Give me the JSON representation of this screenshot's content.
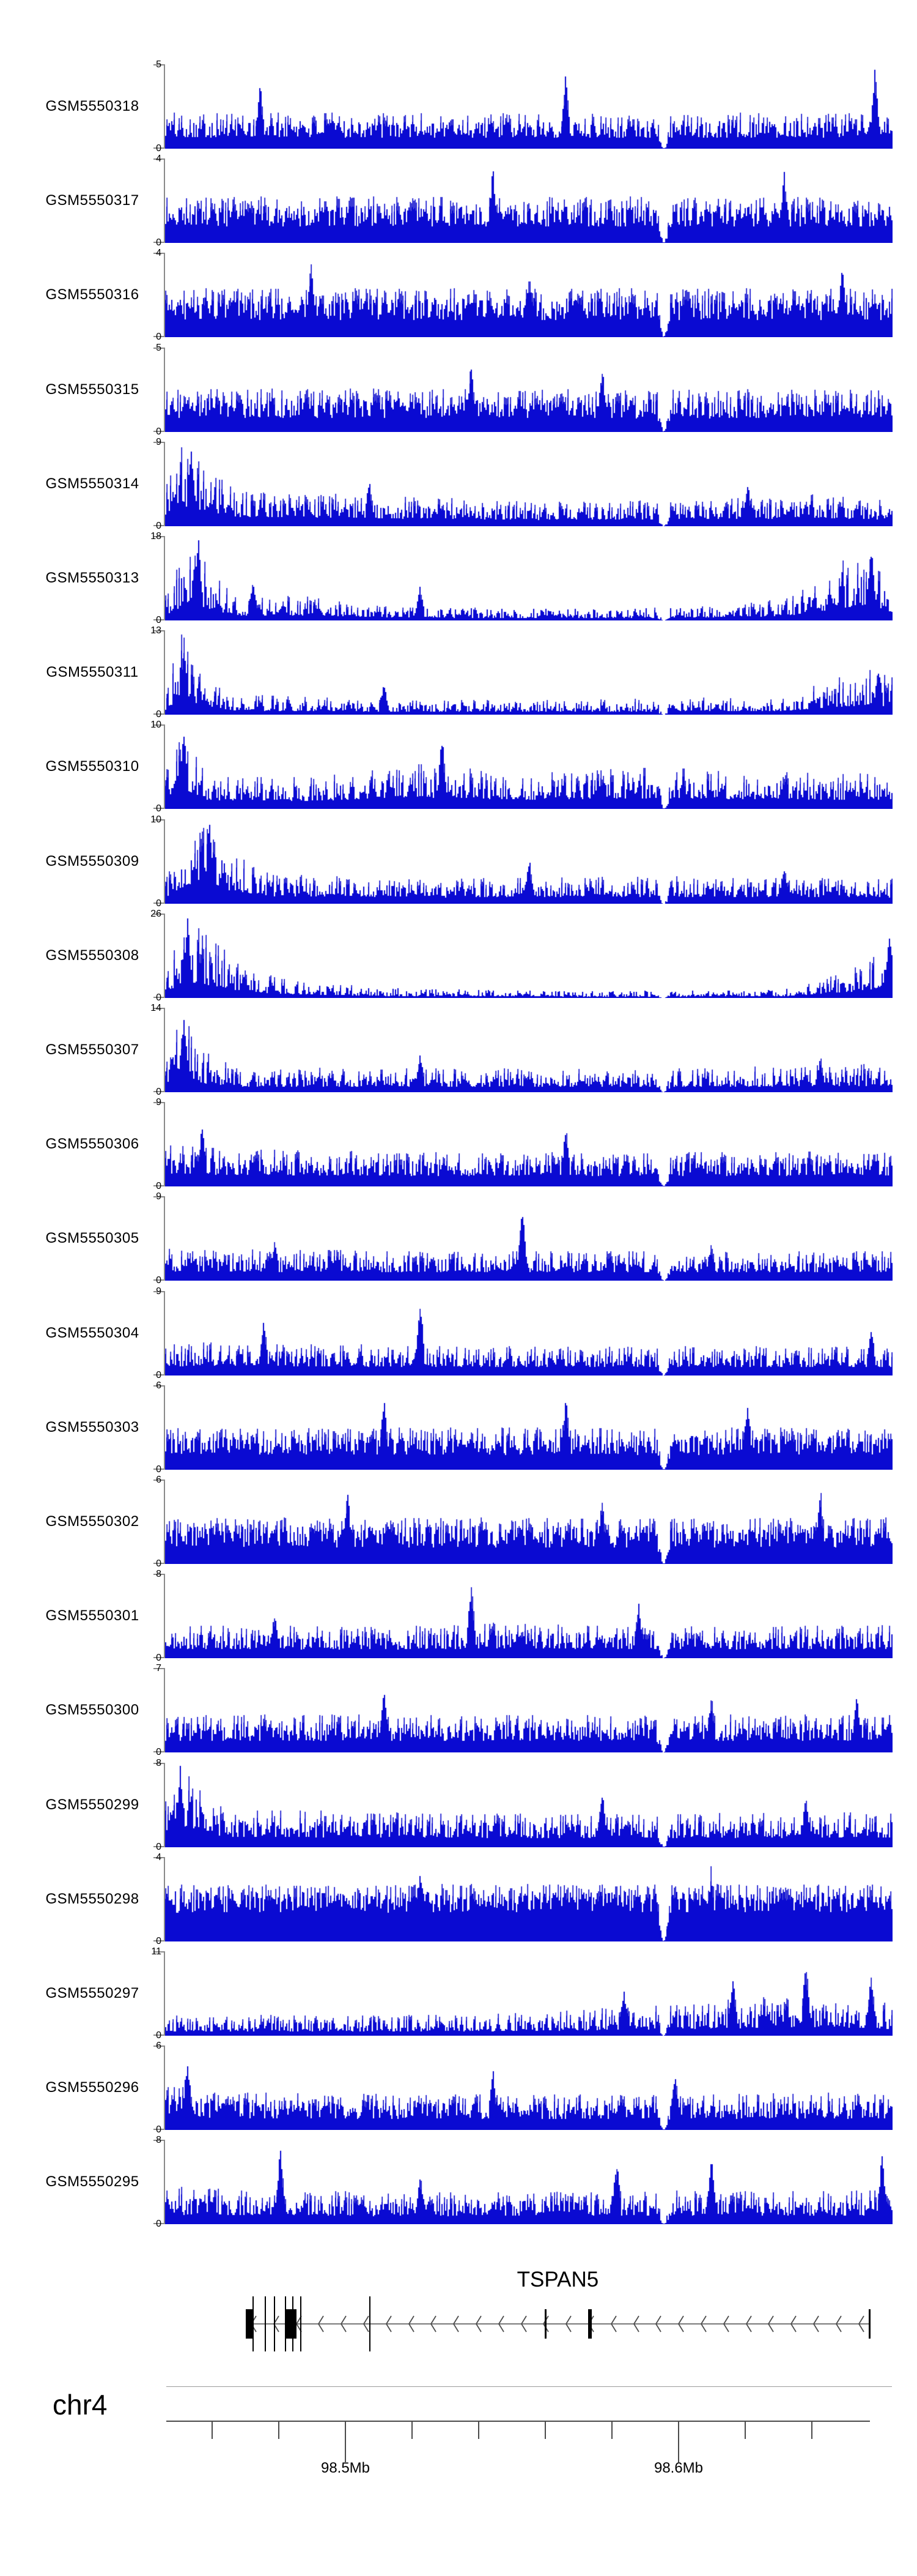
{
  "chart_data": {
    "type": "area",
    "description": "Genome browser read-coverage (pileup) tracks for 23 GEO samples over the TSPAN5 locus on chr4, with gene model and genomic coordinate axis",
    "colors": {
      "coverage_fill": "#0a0ad2",
      "coverage_highlight": "#6b6bdc",
      "track_axis_gray": "#8a8a8a",
      "gene_line_gray": "#7a7a7a",
      "exon_black": "#000000",
      "axis_dark": "#4a4a4a",
      "text": "#000000",
      "background": "#ffffff"
    },
    "y_zero_label": "0",
    "tracks": [
      {
        "sample": "GSM5550318",
        "ymax": 5,
        "seed": 101,
        "floor": 0.3,
        "pw": 1.3,
        "env": [
          [
            0,
            0.44
          ],
          [
            0.5,
            0.42
          ],
          [
            1,
            0.44
          ]
        ],
        "specials": [
          [
            0.13,
            0.8
          ],
          [
            0.55,
            0.95
          ],
          [
            0.975,
            1.0
          ]
        ]
      },
      {
        "sample": "GSM5550317",
        "ymax": 4,
        "seed": 202,
        "floor": 0.35,
        "pw": 1.2,
        "env": [
          [
            0,
            0.55
          ],
          [
            1,
            0.55
          ]
        ],
        "specials": [
          [
            0.45,
            0.95
          ],
          [
            0.85,
            0.9
          ]
        ]
      },
      {
        "sample": "GSM5550316",
        "ymax": 4,
        "seed": 303,
        "floor": 0.35,
        "pw": 1.1,
        "env": [
          [
            0,
            0.58
          ],
          [
            1,
            0.58
          ]
        ],
        "specials": [
          [
            0.2,
            0.95
          ],
          [
            0.5,
            0.9
          ],
          [
            0.93,
            0.95
          ]
        ]
      },
      {
        "sample": "GSM5550315",
        "ymax": 5,
        "seed": 404,
        "floor": 0.32,
        "pw": 1.2,
        "env": [
          [
            0,
            0.52
          ],
          [
            1,
            0.5
          ]
        ],
        "specials": [
          [
            0.42,
            0.9
          ],
          [
            0.6,
            0.85
          ]
        ]
      },
      {
        "sample": "GSM5550314",
        "ymax": 9,
        "seed": 505,
        "floor": 0.25,
        "pw": 1.6,
        "env": [
          [
            0,
            0.55
          ],
          [
            0.02,
            1
          ],
          [
            0.05,
            0.75
          ],
          [
            0.1,
            0.42
          ],
          [
            0.25,
            0.38
          ],
          [
            0.5,
            0.3
          ],
          [
            0.75,
            0.32
          ],
          [
            0.9,
            0.38
          ],
          [
            1,
            0.3
          ]
        ],
        "specials": [
          [
            0.035,
            1
          ],
          [
            0.28,
            0.6
          ],
          [
            0.8,
            0.55
          ]
        ]
      },
      {
        "sample": "GSM5550313",
        "ymax": 18,
        "seed": 606,
        "floor": 0.2,
        "pw": 2.0,
        "env": [
          [
            0,
            0.3
          ],
          [
            0.03,
            1
          ],
          [
            0.07,
            0.55
          ],
          [
            0.1,
            0.28
          ],
          [
            0.18,
            0.3
          ],
          [
            0.3,
            0.18
          ],
          [
            0.5,
            0.14
          ],
          [
            0.7,
            0.16
          ],
          [
            0.85,
            0.25
          ],
          [
            0.96,
            0.9
          ],
          [
            1,
            0.5
          ]
        ],
        "specials": [
          [
            0.045,
            1
          ],
          [
            0.12,
            0.5
          ],
          [
            0.35,
            0.45
          ],
          [
            0.97,
            0.95
          ]
        ]
      },
      {
        "sample": "GSM5550311",
        "ymax": 13,
        "seed": 707,
        "floor": 0.2,
        "pw": 2.0,
        "env": [
          [
            0,
            0.25
          ],
          [
            0.02,
            1
          ],
          [
            0.05,
            0.5
          ],
          [
            0.09,
            0.25
          ],
          [
            0.3,
            0.18
          ],
          [
            0.6,
            0.18
          ],
          [
            0.85,
            0.22
          ],
          [
            0.97,
            0.6
          ],
          [
            1,
            0.45
          ]
        ],
        "specials": [
          [
            0.025,
            1
          ],
          [
            0.3,
            0.4
          ],
          [
            0.98,
            0.6
          ]
        ]
      },
      {
        "sample": "GSM5550310",
        "ymax": 10,
        "seed": 808,
        "floor": 0.25,
        "pw": 1.7,
        "env": [
          [
            0,
            0.5
          ],
          [
            0.02,
            1
          ],
          [
            0.06,
            0.4
          ],
          [
            0.2,
            0.38
          ],
          [
            0.35,
            0.55
          ],
          [
            0.5,
            0.42
          ],
          [
            0.65,
            0.5
          ],
          [
            0.8,
            0.45
          ],
          [
            1,
            0.42
          ]
        ],
        "specials": [
          [
            0.025,
            1
          ],
          [
            0.38,
            0.9
          ],
          [
            0.68,
            0.7
          ]
        ]
      },
      {
        "sample": "GSM5550309",
        "ymax": 10,
        "seed": 909,
        "floor": 0.25,
        "pw": 1.7,
        "env": [
          [
            0,
            0.3
          ],
          [
            0.03,
            0.85
          ],
          [
            0.06,
            1
          ],
          [
            0.09,
            0.6
          ],
          [
            0.15,
            0.35
          ],
          [
            0.4,
            0.3
          ],
          [
            0.7,
            0.33
          ],
          [
            1,
            0.3
          ]
        ],
        "specials": [
          [
            0.06,
            1
          ],
          [
            0.5,
            0.55
          ],
          [
            0.85,
            0.5
          ]
        ]
      },
      {
        "sample": "GSM5550308",
        "ymax": 26,
        "seed": 1010,
        "floor": 0.2,
        "pw": 2.2,
        "env": [
          [
            0,
            0.3
          ],
          [
            0.025,
            1
          ],
          [
            0.05,
            0.85
          ],
          [
            0.09,
            0.5
          ],
          [
            0.15,
            0.25
          ],
          [
            0.3,
            0.12
          ],
          [
            0.6,
            0.08
          ],
          [
            0.85,
            0.1
          ],
          [
            0.96,
            0.4
          ],
          [
            1,
            0.85
          ]
        ],
        "specials": [
          [
            0.03,
            1
          ],
          [
            0.995,
            0.85
          ]
        ]
      },
      {
        "sample": "GSM5550307",
        "ymax": 14,
        "seed": 1111,
        "floor": 0.22,
        "pw": 1.9,
        "env": [
          [
            0,
            0.35
          ],
          [
            0.02,
            1
          ],
          [
            0.05,
            0.5
          ],
          [
            0.1,
            0.28
          ],
          [
            0.3,
            0.3
          ],
          [
            0.55,
            0.28
          ],
          [
            0.8,
            0.3
          ],
          [
            1,
            0.35
          ]
        ],
        "specials": [
          [
            0.025,
            1
          ],
          [
            0.35,
            0.5
          ],
          [
            0.9,
            0.45
          ]
        ]
      },
      {
        "sample": "GSM5550306",
        "ymax": 9,
        "seed": 1212,
        "floor": 0.3,
        "pw": 1.4,
        "env": [
          [
            0,
            0.5
          ],
          [
            0.1,
            0.45
          ],
          [
            0.3,
            0.42
          ],
          [
            0.6,
            0.4
          ],
          [
            1,
            0.42
          ]
        ],
        "specials": [
          [
            0.05,
            0.8
          ],
          [
            0.55,
            0.75
          ]
        ]
      },
      {
        "sample": "GSM5550305",
        "ymax": 9,
        "seed": 1313,
        "floor": 0.28,
        "pw": 1.6,
        "env": [
          [
            0,
            0.38
          ],
          [
            0.5,
            0.35
          ],
          [
            1,
            0.35
          ]
        ],
        "specials": [
          [
            0.49,
            1
          ],
          [
            0.15,
            0.5
          ],
          [
            0.75,
            0.5
          ]
        ]
      },
      {
        "sample": "GSM5550304",
        "ymax": 9,
        "seed": 1414,
        "floor": 0.28,
        "pw": 1.6,
        "env": [
          [
            0,
            0.4
          ],
          [
            0.5,
            0.35
          ],
          [
            1,
            0.35
          ]
        ],
        "specials": [
          [
            0.135,
            0.75
          ],
          [
            0.35,
            1
          ],
          [
            0.97,
            0.6
          ]
        ]
      },
      {
        "sample": "GSM5550303",
        "ymax": 6,
        "seed": 1515,
        "floor": 0.35,
        "pw": 1.1,
        "env": [
          [
            0,
            0.5
          ],
          [
            1,
            0.5
          ]
        ],
        "specials": [
          [
            0.3,
            0.9
          ],
          [
            0.55,
            0.95
          ],
          [
            0.8,
            0.85
          ]
        ]
      },
      {
        "sample": "GSM5550302",
        "ymax": 6,
        "seed": 1616,
        "floor": 0.35,
        "pw": 1.0,
        "env": [
          [
            0,
            0.55
          ],
          [
            1,
            0.55
          ]
        ],
        "specials": [
          [
            0.25,
            0.95
          ],
          [
            0.6,
            0.9
          ],
          [
            0.9,
            0.95
          ]
        ]
      },
      {
        "sample": "GSM5550301",
        "ymax": 8,
        "seed": 1717,
        "floor": 0.27,
        "pw": 1.5,
        "env": [
          [
            0,
            0.4
          ],
          [
            0.3,
            0.38
          ],
          [
            0.45,
            0.42
          ],
          [
            0.7,
            0.38
          ],
          [
            1,
            0.4
          ]
        ],
        "specials": [
          [
            0.42,
            1
          ],
          [
            0.65,
            0.7
          ],
          [
            0.15,
            0.6
          ]
        ]
      },
      {
        "sample": "GSM5550300",
        "ymax": 7,
        "seed": 1818,
        "floor": 0.3,
        "pw": 1.3,
        "env": [
          [
            0,
            0.45
          ],
          [
            1,
            0.45
          ]
        ],
        "specials": [
          [
            0.3,
            0.8
          ],
          [
            0.75,
            0.75
          ],
          [
            0.95,
            0.7
          ]
        ]
      },
      {
        "sample": "GSM5550299",
        "ymax": 8,
        "seed": 1919,
        "floor": 0.27,
        "pw": 1.5,
        "env": [
          [
            0,
            0.6
          ],
          [
            0.03,
            0.9
          ],
          [
            0.08,
            0.45
          ],
          [
            0.5,
            0.4
          ],
          [
            1,
            0.42
          ]
        ],
        "specials": [
          [
            0.02,
            1
          ],
          [
            0.6,
            0.7
          ],
          [
            0.88,
            0.65
          ]
        ]
      },
      {
        "sample": "GSM5550298",
        "ymax": 4,
        "seed": 2020,
        "floor": 0.5,
        "pw": 0.9,
        "env": [
          [
            0,
            0.68
          ],
          [
            1,
            0.68
          ]
        ],
        "specials": [
          [
            0.35,
            1
          ],
          [
            0.75,
            0.95
          ]
        ]
      },
      {
        "sample": "GSM5550297",
        "ymax": 11,
        "seed": 2121,
        "floor": 0.2,
        "pw": 1.8,
        "env": [
          [
            0,
            0.25
          ],
          [
            0.4,
            0.25
          ],
          [
            0.55,
            0.3
          ],
          [
            0.7,
            0.4
          ],
          [
            0.8,
            0.45
          ],
          [
            0.9,
            0.5
          ],
          [
            1,
            0.4
          ]
        ],
        "specials": [
          [
            0.63,
            0.6
          ],
          [
            0.78,
            0.75
          ],
          [
            0.88,
            1
          ],
          [
            0.97,
            0.8
          ]
        ]
      },
      {
        "sample": "GSM5550296",
        "ymax": 6,
        "seed": 2222,
        "floor": 0.3,
        "pw": 1.3,
        "env": [
          [
            0,
            0.55
          ],
          [
            0.1,
            0.45
          ],
          [
            0.5,
            0.42
          ],
          [
            1,
            0.45
          ]
        ],
        "specials": [
          [
            0.03,
            0.95
          ],
          [
            0.45,
            0.8
          ],
          [
            0.7,
            0.75
          ]
        ]
      },
      {
        "sample": "GSM5550295",
        "ymax": 8,
        "seed": 2323,
        "floor": 0.25,
        "pw": 1.5,
        "env": [
          [
            0,
            0.45
          ],
          [
            0.3,
            0.38
          ],
          [
            0.6,
            0.4
          ],
          [
            1,
            0.4
          ]
        ],
        "specials": [
          [
            0.158,
            1
          ],
          [
            0.35,
            0.65
          ],
          [
            0.62,
            0.8
          ],
          [
            0.75,
            0.85
          ],
          [
            0.985,
            0.9
          ]
        ]
      }
    ],
    "coverage_gap": {
      "center_mb": 98.5954,
      "half_width_mb": 0.0021
    },
    "gene": {
      "name": "TSPAN5",
      "strand": "-",
      "span_mb": [
        98.4701,
        98.6574
      ],
      "cds_boxes_mb": [
        [
          98.4701,
          98.4723
        ],
        [
          98.4818,
          98.4853
        ],
        [
          98.5729,
          98.5739
        ]
      ],
      "exon_lines_tall_mb": [
        98.4723,
        98.476,
        98.4787,
        98.482,
        98.4843,
        98.4866,
        98.5073
      ],
      "exon_lines_short_mb": [
        98.56,
        98.6574
      ]
    },
    "axis": {
      "chromosome_label": "chr4",
      "range_mb": [
        98.446,
        98.664
      ],
      "major_ticks": [
        {
          "mb": 98.5,
          "label": "98.5Mb"
        },
        {
          "mb": 98.6,
          "label": "98.6Mb"
        }
      ],
      "minor_ticks_mb": [
        98.46,
        98.48,
        98.52,
        98.54,
        98.56,
        98.58,
        98.62,
        98.64
      ]
    }
  }
}
